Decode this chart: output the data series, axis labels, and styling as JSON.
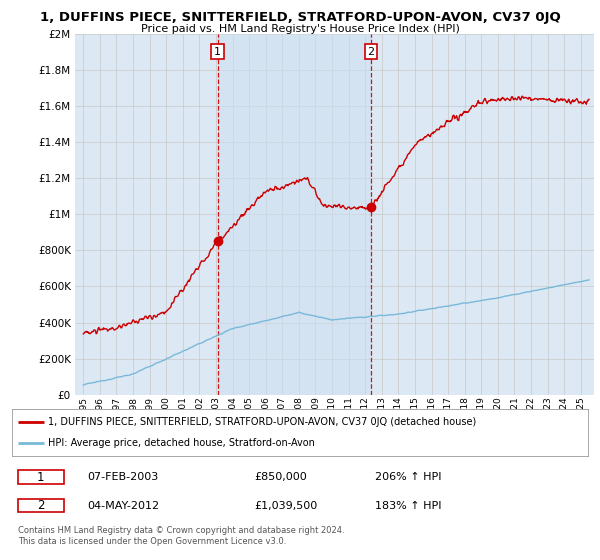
{
  "title": "1, DUFFINS PIECE, SNITTERFIELD, STRATFORD-UPON-AVON, CV37 0JQ",
  "subtitle": "Price paid vs. HM Land Registry's House Price Index (HPI)",
  "legend_line1": "1, DUFFINS PIECE, SNITTERFIELD, STRATFORD-UPON-AVON, CV37 0JQ (detached house)",
  "legend_line2": "HPI: Average price, detached house, Stratford-on-Avon",
  "transaction1_date": "07-FEB-2003",
  "transaction1_price": "£850,000",
  "transaction1_hpi": "206% ↑ HPI",
  "transaction2_date": "04-MAY-2012",
  "transaction2_price": "£1,039,500",
  "transaction2_hpi": "183% ↑ HPI",
  "footnote": "Contains HM Land Registry data © Crown copyright and database right 2024.\nThis data is licensed under the Open Government Licence v3.0.",
  "hpi_color": "#7ab8d9",
  "price_color": "#cc0000",
  "vline_color": "#cc0000",
  "background_color": "#dce9f5",
  "plot_bg": "#ffffff",
  "ylim": [
    0,
    2000000
  ],
  "yticks": [
    0,
    200000,
    400000,
    600000,
    800000,
    1000000,
    1200000,
    1400000,
    1600000,
    1800000,
    2000000
  ],
  "transaction1_x": 2003.1,
  "transaction1_y": 850000,
  "transaction2_x": 2012.35,
  "transaction2_y": 1039500,
  "xlim_start": 1994.5,
  "xlim_end": 2025.8
}
